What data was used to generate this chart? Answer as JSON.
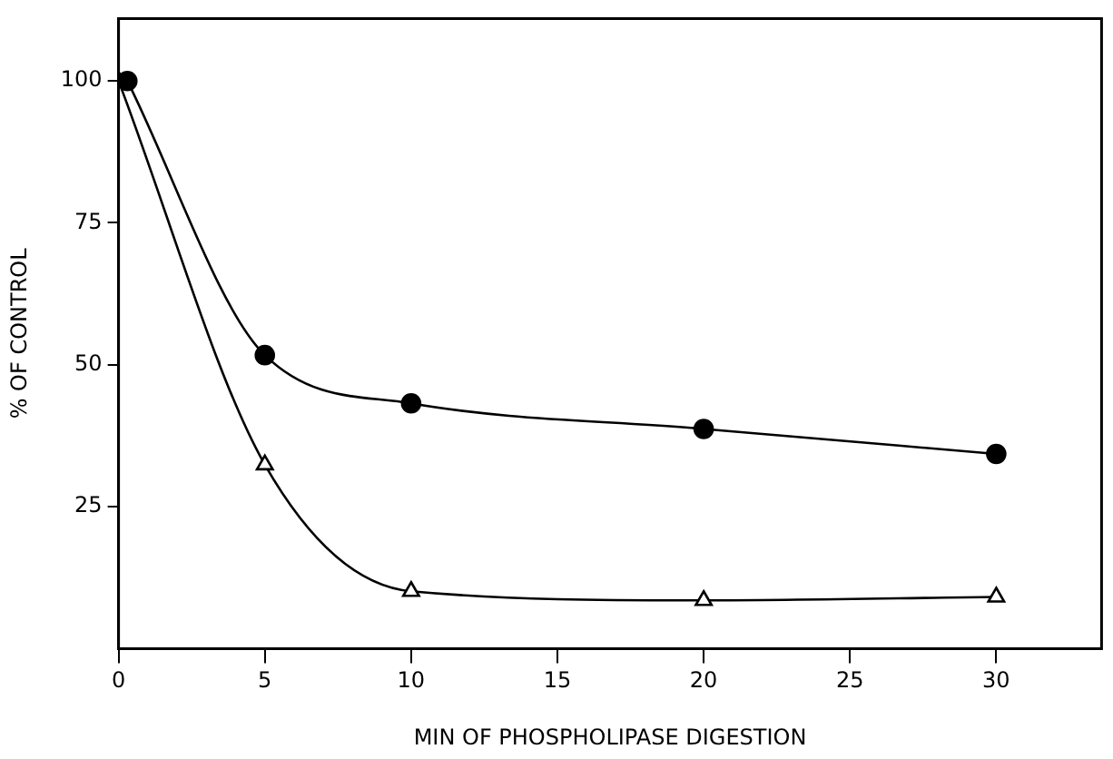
{
  "chart_data": {
    "type": "line",
    "xlabel": "MIN OF PHOSPHOLIPASE DIGESTION",
    "ylabel": "% OF CONTROL",
    "xlim": [
      0,
      33.6
    ],
    "xticks": [
      0,
      5,
      10,
      15,
      20,
      25,
      30
    ],
    "ylim": [
      0,
      111
    ],
    "yticks": [
      25,
      50,
      75,
      100
    ],
    "grid": false,
    "legend": false,
    "series": [
      {
        "color": "#000000",
        "marker": "circle",
        "x": [
          0.3,
          5,
          10,
          20,
          30
        ],
        "values": [
          100,
          51.7,
          43.2,
          38.7,
          34.3
        ]
      },
      {
        "color": "#000000",
        "marker": "triangle",
        "x": [
          0,
          5,
          10,
          20,
          30
        ],
        "values": [
          100,
          32.4,
          10.1,
          8.5,
          9.1
        ]
      }
    ]
  }
}
